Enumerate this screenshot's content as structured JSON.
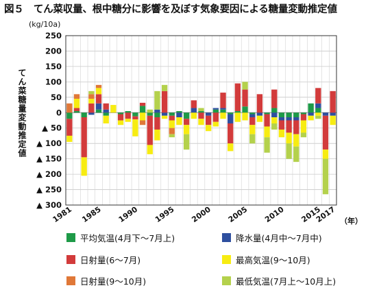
{
  "title": "図５　てん菜収量、根中糖分に影響を及ぼす気象要因による糖量変動推定値",
  "unit": "(kg/10a)",
  "y_axis_title": "てん菜糖量変動推定値",
  "x_unit": "（年）",
  "chart_data": {
    "type": "bar",
    "stacked": true,
    "ylim": [
      -300,
      250
    ],
    "ytick_values": [
      250,
      200,
      150,
      100,
      50,
      0,
      -50,
      -100,
      -150,
      -200,
      -250,
      -300
    ],
    "ytick_labels": [
      "250",
      "200",
      "150",
      "100",
      "50",
      "0",
      "▲ 50",
      "▲ 100",
      "▲ 150",
      "▲ 200",
      "▲ 250",
      "▲ 300"
    ],
    "x_tick_labels": [
      {
        "year": 1981,
        "label": "1981"
      },
      {
        "year": 1985,
        "label": "1985"
      },
      {
        "year": 1990,
        "label": "1990"
      },
      {
        "year": 1995,
        "label": "1995"
      },
      {
        "year": 2000,
        "label": "2000"
      },
      {
        "year": 2005,
        "label": "2005"
      },
      {
        "year": 2010,
        "label": "2010"
      },
      {
        "year": 2015,
        "label": "2015"
      },
      {
        "year": 2017,
        "label": "2017"
      }
    ],
    "grid": true,
    "legend_placement": "bottom",
    "categories": [
      1981,
      1982,
      1983,
      1984,
      1985,
      1986,
      1987,
      1988,
      1989,
      1990,
      1991,
      1992,
      1993,
      1994,
      1995,
      1996,
      1997,
      1998,
      1999,
      2000,
      2001,
      2002,
      2003,
      2004,
      2005,
      2006,
      2007,
      2008,
      2009,
      2010,
      2011,
      2012,
      2013,
      2014,
      2015,
      2016,
      2017
    ],
    "series": [
      {
        "name": "平均気温(4月下～7月上)",
        "color": "#1e9a48",
        "values": [
          -20,
          5,
          -15,
          0,
          10,
          -10,
          0,
          -5,
          5,
          -12,
          22,
          -10,
          -15,
          0,
          -10,
          5,
          -20,
          0,
          5,
          0,
          10,
          10,
          -5,
          5,
          20,
          -5,
          0,
          -5,
          15,
          -15,
          -15,
          -15,
          -5,
          30,
          15,
          0,
          0
        ]
      },
      {
        "name": "降水量(4月中～7月中)",
        "color": "#2e4f9f",
        "values": [
          0,
          0,
          0,
          -7,
          20,
          10,
          0,
          0,
          0,
          0,
          0,
          0,
          10,
          -10,
          0,
          -15,
          0,
          15,
          0,
          -10,
          5,
          5,
          -30,
          0,
          0,
          -10,
          -10,
          0,
          -15,
          -10,
          -10,
          -10,
          0,
          -10,
          15,
          -10,
          -10
        ]
      },
      {
        "name": "日射量(6～7月)",
        "color": "#d23b3b",
        "values": [
          -55,
          10,
          -130,
          30,
          30,
          20,
          0,
          -20,
          -20,
          -10,
          10,
          -95,
          -40,
          70,
          -15,
          0,
          -20,
          25,
          -20,
          -30,
          -30,
          50,
          -65,
          90,
          55,
          -25,
          60,
          -40,
          60,
          -30,
          -40,
          -45,
          -20,
          0,
          50,
          -110,
          70
        ]
      },
      {
        "name": "最高気温(9～10月)",
        "color": "#f7ec12",
        "values": [
          -20,
          30,
          -60,
          15,
          20,
          -25,
          25,
          -15,
          -10,
          -55,
          -25,
          -30,
          -35,
          -10,
          -25,
          -25,
          -30,
          -20,
          -20,
          -20,
          -15,
          -20,
          -25,
          -30,
          -25,
          -30,
          -20,
          -35,
          -20,
          -25,
          -35,
          -40,
          -40,
          -15,
          -10,
          -30,
          -30
        ]
      },
      {
        "name": "日射量(9～10月)",
        "color": "#e07838",
        "values": [
          30,
          15,
          0,
          15,
          10,
          0,
          0,
          0,
          0,
          0,
          -15,
          0,
          0,
          0,
          -20,
          0,
          0,
          0,
          0,
          0,
          0,
          0,
          0,
          0,
          0,
          0,
          0,
          0,
          0,
          0,
          0,
          0,
          0,
          0,
          0,
          0,
          0
        ]
      },
      {
        "name": "最低気温(7月上～10月上)",
        "color": "#b4d14c",
        "values": [
          0,
          0,
          0,
          10,
          0,
          0,
          0,
          0,
          0,
          0,
          0,
          10,
          60,
          20,
          -10,
          0,
          -50,
          0,
          10,
          0,
          0,
          0,
          0,
          0,
          25,
          -30,
          0,
          -50,
          -20,
          0,
          -50,
          -50,
          -15,
          0,
          -10,
          -115,
          0
        ]
      }
    ]
  }
}
